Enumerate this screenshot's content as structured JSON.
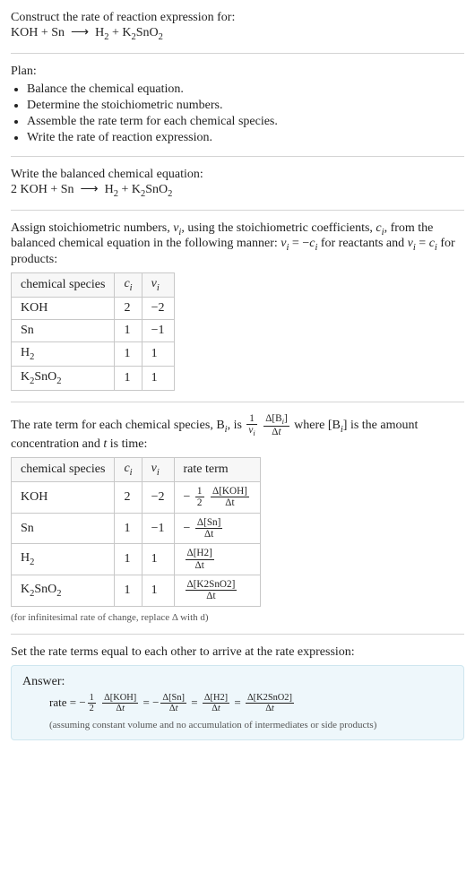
{
  "header": {
    "title": "Construct the rate of reaction expression for:",
    "equation_html": "KOH + Sn &nbsp;&#10230;&nbsp; H<sub>2</sub> + K<sub>2</sub>SnO<sub>2</sub>"
  },
  "plan": {
    "title": "Plan:",
    "items": [
      "Balance the chemical equation.",
      "Determine the stoichiometric numbers.",
      "Assemble the rate term for each chemical species.",
      "Write the rate of reaction expression."
    ]
  },
  "balanced": {
    "title": "Write the balanced chemical equation:",
    "equation_html": "2 KOH + Sn &nbsp;&#10230;&nbsp; H<sub>2</sub> + K<sub>2</sub>SnO<sub>2</sub>"
  },
  "stoich": {
    "intro_html": "Assign stoichiometric numbers, <i>&nu;<sub>i</sub></i>, using the stoichiometric coefficients, <i>c<sub>i</sub></i>, from the balanced chemical equation in the following manner: <i>&nu;<sub>i</sub></i> = &minus;<i>c<sub>i</sub></i> for reactants and <i>&nu;<sub>i</sub></i> = <i>c<sub>i</sub></i> for products:",
    "headers": [
      "chemical species",
      "c_i",
      "nu_i"
    ],
    "rows": [
      {
        "species_html": "KOH",
        "c": "2",
        "nu": "−2"
      },
      {
        "species_html": "Sn",
        "c": "1",
        "nu": "−1"
      },
      {
        "species_html": "H<sub>2</sub>",
        "c": "1",
        "nu": "1"
      },
      {
        "species_html": "K<sub>2</sub>SnO<sub>2</sub>",
        "c": "1",
        "nu": "1"
      }
    ]
  },
  "rate_terms": {
    "intro_pre": "The rate term for each chemical species, B",
    "intro_mid": ", is ",
    "intro_post_html": " where [B<sub><i>i</i></sub>] is the amount concentration and <i>t</i> is time:",
    "headers": [
      "chemical species",
      "c_i",
      "nu_i",
      "rate term"
    ],
    "rows": [
      {
        "species_html": "KOH",
        "c": "2",
        "nu": "−2",
        "rate_prefix": "−",
        "rate_coef_num": "1",
        "rate_coef_den": "2",
        "rate_num": "Δ[KOH]",
        "rate_den": "Δt"
      },
      {
        "species_html": "Sn",
        "c": "1",
        "nu": "−1",
        "rate_prefix": "−",
        "rate_coef_num": "",
        "rate_coef_den": "",
        "rate_num": "Δ[Sn]",
        "rate_den": "Δt"
      },
      {
        "species_html": "H<sub>2</sub>",
        "c": "1",
        "nu": "1",
        "rate_prefix": "",
        "rate_coef_num": "",
        "rate_coef_den": "",
        "rate_num": "Δ[H2]",
        "rate_den": "Δt"
      },
      {
        "species_html": "K<sub>2</sub>SnO<sub>2</sub>",
        "c": "1",
        "nu": "1",
        "rate_prefix": "",
        "rate_coef_num": "",
        "rate_coef_den": "",
        "rate_num": "Δ[K2SnO2]",
        "rate_den": "Δt"
      }
    ],
    "note": "(for infinitesimal rate of change, replace Δ with d)"
  },
  "final": {
    "intro": "Set the rate terms equal to each other to arrive at the rate expression:",
    "answer_label": "Answer:",
    "answer_note": "(assuming constant volume and no accumulation of intermediates or side products)"
  },
  "style": {
    "border_color": "#c8c8c8",
    "answer_bg": "#eef7fb",
    "answer_border": "#cfe6ef"
  }
}
